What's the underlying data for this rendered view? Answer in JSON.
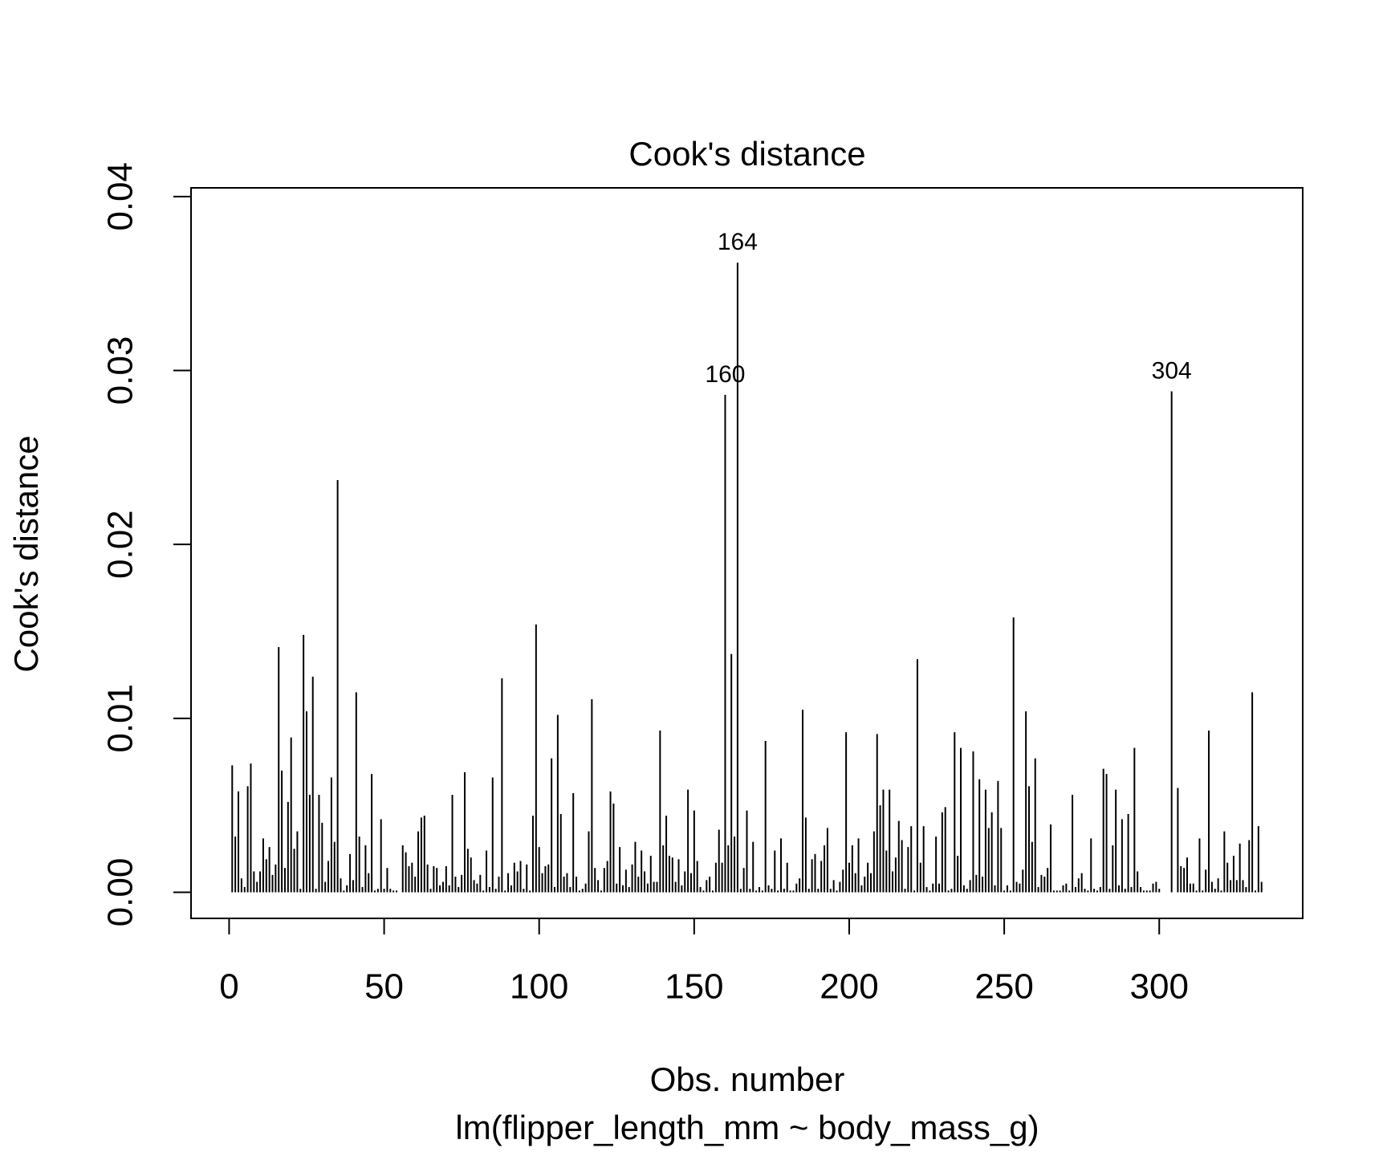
{
  "chart_data": {
    "type": "histogram_h",
    "title": "Cook's distance",
    "ylabel": "Cook's distance",
    "xlabel": "Obs. number",
    "subtitle": "lm(flipper_length_mm ~ body_mass_g)",
    "color": "#000000",
    "xlim": [
      -12.28,
      346.28
    ],
    "ylim": [
      -0.0015,
      0.0405
    ],
    "xticks": [
      0,
      50,
      100,
      150,
      200,
      250,
      300
    ],
    "yticks": [
      {
        "value": 0,
        "label": "0.00"
      },
      0.01,
      0.02,
      0.03,
      0.04
    ],
    "annotations": [
      {
        "text": "160"
      },
      {
        "text": "164"
      },
      {
        "text": "304"
      }
    ],
    "x": [
      1,
      2,
      3,
      4,
      5,
      6,
      7,
      8,
      9,
      10,
      11,
      12,
      13,
      14,
      15,
      16,
      17,
      18,
      19,
      20,
      21,
      22,
      23,
      24,
      25,
      26,
      27,
      28,
      29,
      30,
      31,
      32,
      33,
      34,
      35,
      36,
      37,
      38,
      39,
      40,
      41,
      42,
      43,
      44,
      45,
      46,
      47,
      48,
      49,
      50,
      51,
      52,
      53,
      54,
      55,
      56,
      57,
      58,
      59,
      60,
      61,
      62,
      63,
      64,
      65,
      66,
      67,
      68,
      69,
      70,
      71,
      72,
      73,
      74,
      75,
      76,
      77,
      78,
      79,
      80,
      81,
      82,
      83,
      84,
      85,
      86,
      87,
      88,
      89,
      90,
      91,
      92,
      93,
      94,
      95,
      96,
      97,
      98,
      99,
      100,
      101,
      102,
      103,
      104,
      105,
      106,
      107,
      108,
      109,
      110,
      111,
      112,
      113,
      114,
      115,
      116,
      117,
      118,
      119,
      120,
      121,
      122,
      123,
      124,
      125,
      126,
      127,
      128,
      129,
      130,
      131,
      132,
      133,
      134,
      135,
      136,
      137,
      138,
      139,
      140,
      141,
      142,
      143,
      144,
      145,
      146,
      147,
      148,
      149,
      150,
      151,
      152,
      153,
      154,
      155,
      156,
      157,
      158,
      159,
      160,
      161,
      162,
      163,
      164,
      165,
      166,
      167,
      168,
      169,
      170,
      171,
      172,
      173,
      174,
      175,
      176,
      177,
      178,
      179,
      180,
      181,
      182,
      183,
      184,
      185,
      186,
      187,
      188,
      189,
      190,
      191,
      192,
      193,
      194,
      195,
      196,
      197,
      198,
      199,
      200,
      201,
      202,
      203,
      204,
      205,
      206,
      207,
      208,
      209,
      210,
      211,
      212,
      213,
      214,
      215,
      216,
      217,
      218,
      219,
      220,
      221,
      222,
      223,
      224,
      225,
      226,
      227,
      228,
      229,
      230,
      231,
      232,
      233,
      234,
      235,
      236,
      237,
      238,
      239,
      240,
      241,
      242,
      243,
      244,
      245,
      246,
      247,
      248,
      249,
      250,
      251,
      252,
      253,
      254,
      255,
      256,
      257,
      258,
      259,
      260,
      261,
      262,
      263,
      264,
      265,
      266,
      267,
      268,
      269,
      270,
      271,
      272,
      273,
      274,
      275,
      276,
      277,
      278,
      279,
      280,
      281,
      282,
      283,
      284,
      285,
      286,
      287,
      288,
      289,
      290,
      291,
      292,
      293,
      294,
      295,
      296,
      297,
      298,
      299,
      300,
      301,
      302,
      303,
      304,
      305,
      306,
      307,
      308,
      309,
      310,
      311,
      312,
      313,
      314,
      315,
      316,
      317,
      318,
      319,
      320,
      321,
      322,
      323,
      324,
      325,
      326,
      327,
      328,
      329,
      330,
      331,
      332,
      333
    ],
    "values": [
      0.0073,
      0.0032,
      0.0058,
      0.0008,
      0.0003,
      0.0061,
      0.0074,
      0.0012,
      0.0006,
      0.0012,
      0.0031,
      0.0019,
      0.0026,
      0.001,
      0.0016,
      0.0141,
      0.007,
      0.0014,
      0.0052,
      0.0089,
      0.0025,
      0.0035,
      0.0002,
      0.0148,
      0.0104,
      0.0056,
      0.0124,
      0.0002,
      0.0056,
      0.004,
      0.0006,
      0.0018,
      0.0066,
      0.0029,
      0.0237,
      0.0008,
      0.0001,
      0.0004,
      0.0022,
      0.0007,
      0.0115,
      0.0032,
      0.0003,
      0.0027,
      0.0011,
      0.0068,
      0.0001,
      0.0002,
      0.0042,
      0.0002,
      0.0014,
      0.0002,
      0.0001,
      0.0001,
      0,
      0.0027,
      0.0023,
      0.0015,
      0.0017,
      0.0009,
      0.0035,
      0.0043,
      0.0044,
      0.0016,
      0.0002,
      0.0015,
      0.0014,
      0.0004,
      0.0006,
      0.0015,
      0.0004,
      0.0056,
      0.0009,
      0.0003,
      0.001,
      0.0069,
      0.0025,
      0.002,
      0.0007,
      0.0005,
      0.001,
      0.0001,
      0.0024,
      0.0003,
      0.0066,
      0.0002,
      0.0009,
      0.0123,
      0.0001,
      0.0011,
      0.0004,
      0.0017,
      0.0012,
      0.0018,
      0.0002,
      0.0016,
      0.0001,
      0.0044,
      0.0154,
      0.0026,
      0.0011,
      0.0015,
      0.0016,
      0.0077,
      0.0003,
      0.0102,
      0.0045,
      0.0009,
      0.0011,
      0.0003,
      0.0057,
      0.0009,
      0.0001,
      0.0002,
      0.0005,
      0.0035,
      0.0111,
      0.0014,
      0.0007,
      0.0001,
      0.0014,
      0.0018,
      0.0058,
      0.0051,
      0.0005,
      0.0026,
      0.0004,
      0.0013,
      0.0003,
      0.0016,
      0.0029,
      0.0009,
      0.0024,
      0.0012,
      0.0005,
      0.0021,
      0.0006,
      0.0006,
      0.0093,
      0.0027,
      0.0044,
      0.0021,
      0.002,
      0.0006,
      0.0019,
      0.0004,
      0.0012,
      0.0059,
      0.0011,
      0.0047,
      0.0018,
      0.0003,
      0.0001,
      0.0007,
      0.0009,
      0.0001,
      0.0017,
      0.0036,
      0.0017,
      0.0286,
      0.0027,
      0.0137,
      0.0032,
      0.0362,
      0.0002,
      0.0014,
      0.0047,
      0.0002,
      0.0029,
      0.0001,
      0.0003,
      0.0001,
      0.0087,
      0.0004,
      0.0002,
      0.0024,
      0.0001,
      0.0031,
      0.0002,
      0.0017,
      0.0001,
      0.0001,
      0.0005,
      0.0008,
      0.0105,
      0.0043,
      0.0002,
      0.0019,
      0.0022,
      0.0002,
      0.0018,
      0.0027,
      0.0037,
      0.0002,
      0.0007,
      0.0001,
      0.0006,
      0.0013,
      0.0092,
      0.0017,
      0.0027,
      0.0011,
      0.0031,
      0.0004,
      0.0009,
      0.0017,
      0.0011,
      0.0035,
      0.0091,
      0.005,
      0.0059,
      0.0024,
      0.0059,
      0.0012,
      0.002,
      0.0041,
      0.003,
      0.0002,
      0.0026,
      0.0038,
      0.0001,
      0.0134,
      0.0017,
      0.0038,
      0.0003,
      0.0001,
      0.0005,
      0.0032,
      0.0005,
      0.0046,
      0.0049,
      0.0001,
      0.0002,
      0.0092,
      0.0021,
      0.0083,
      0.0004,
      0.0002,
      0.0007,
      0.0081,
      0.001,
      0.0065,
      0.0009,
      0.0059,
      0.0037,
      0.0046,
      0.0004,
      0.0064,
      0.0037,
      0.0001,
      0.0004,
      0.0001,
      0.0158,
      0.0006,
      0.0005,
      0.0013,
      0.0104,
      0.0061,
      0.0029,
      0.0077,
      0.0003,
      0.001,
      0.0009,
      0.0014,
      0.0039,
      0.0001,
      0.0001,
      0.0001,
      0.0004,
      0.0005,
      0.0001,
      0.0056,
      0.0003,
      0.0008,
      0.0011,
      0.0002,
      0.0001,
      0.0031,
      0.0002,
      0.0001,
      0.0003,
      0.0071,
      0.0068,
      0.0002,
      0.0027,
      0.0059,
      0.0004,
      0.0042,
      0.0002,
      0.0045,
      0.0003,
      0.0083,
      0.0012,
      0.0003,
      0.0001,
      0.0001,
      0.0001,
      0.0005,
      0.0006,
      0.0002,
      0,
      0,
      0,
      0.0288,
      0,
      0.006,
      0.0015,
      0.0014,
      0.002,
      0.0005,
      0.0005,
      0.0001,
      0.0031,
      0.0001,
      0.0013,
      0.0093,
      0.0006,
      0.0002,
      0.0008,
      0.0001,
      0.0035,
      0.0017,
      0.0007,
      0.0021,
      0.0007,
      0.0028,
      0.0007,
      0.0003,
      0.003,
      0.0115,
      0.0001,
      0.0038,
      0.0006
    ]
  }
}
